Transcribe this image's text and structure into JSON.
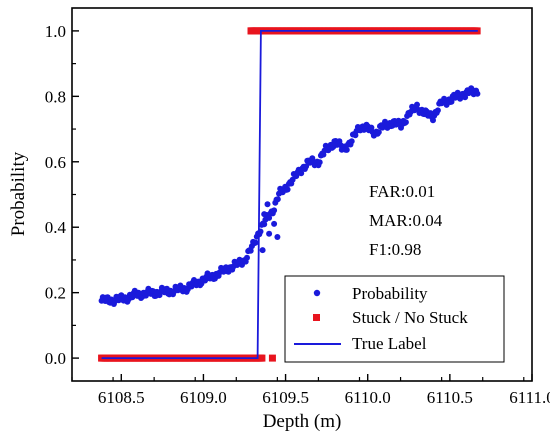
{
  "chart_data": {
    "type": "scatter",
    "xlabel": "Depth (m)",
    "ylabel": "Probability",
    "xlim": [
      6108.2,
      6111.0
    ],
    "ylim": [
      -0.07,
      1.07
    ],
    "x_ticks": [
      6108.5,
      6109.0,
      6109.5,
      6110.0,
      6110.5,
      6111.0
    ],
    "x_tick_labels": [
      "6108.5",
      "6109.0",
      "6109.5",
      "6110.0",
      "6110.5",
      "6111.0"
    ],
    "y_ticks": [
      0.0,
      0.2,
      0.4,
      0.6,
      0.8,
      1.0
    ],
    "y_tick_labels": [
      "0.0",
      "0.2",
      "0.4",
      "0.6",
      "0.8",
      "1.0"
    ],
    "x_minor_step": 0.25,
    "y_minor_step": 0.1,
    "annotations": [
      "FAR:0.01",
      "MAR:0.04",
      "F1:0.98"
    ],
    "legend_position": "bottom-right",
    "grid": false,
    "series": [
      {
        "name": "Probability",
        "style": "dots",
        "color": "#1a1adb",
        "x_start": 6108.38,
        "x_end": 6110.67,
        "curve_points": [
          [
            6108.38,
            0.175
          ],
          [
            6108.5,
            0.18
          ],
          [
            6108.6,
            0.195
          ],
          [
            6108.7,
            0.2
          ],
          [
            6108.8,
            0.205
          ],
          [
            6108.9,
            0.215
          ],
          [
            6109.0,
            0.24
          ],
          [
            6109.1,
            0.26
          ],
          [
            6109.15,
            0.275
          ],
          [
            6109.2,
            0.285
          ],
          [
            6109.25,
            0.3
          ],
          [
            6109.3,
            0.34
          ],
          [
            6109.34,
            0.39
          ],
          [
            6109.38,
            0.42
          ],
          [
            6109.42,
            0.45
          ],
          [
            6109.46,
            0.5
          ],
          [
            6109.5,
            0.52
          ],
          [
            6109.55,
            0.55
          ],
          [
            6109.6,
            0.58
          ],
          [
            6109.65,
            0.6
          ],
          [
            6109.7,
            0.6
          ],
          [
            6109.75,
            0.64
          ],
          [
            6109.8,
            0.66
          ],
          [
            6109.85,
            0.64
          ],
          [
            6109.9,
            0.66
          ],
          [
            6109.95,
            0.71
          ],
          [
            6110.0,
            0.7
          ],
          [
            6110.05,
            0.69
          ],
          [
            6110.1,
            0.71
          ],
          [
            6110.15,
            0.72
          ],
          [
            6110.2,
            0.71
          ],
          [
            6110.25,
            0.745
          ],
          [
            6110.3,
            0.77
          ],
          [
            6110.35,
            0.745
          ],
          [
            6110.4,
            0.74
          ],
          [
            6110.45,
            0.78
          ],
          [
            6110.5,
            0.79
          ],
          [
            6110.55,
            0.8
          ],
          [
            6110.6,
            0.81
          ],
          [
            6110.67,
            0.815
          ]
        ]
      },
      {
        "name": "Stuck / No Stuck",
        "style": "squares",
        "color": "#e8141e",
        "segments": [
          {
            "x_start": 6108.38,
            "x_end": 6109.36,
            "y": 0.0
          },
          {
            "x_start": 6109.29,
            "x_end": 6110.67,
            "y": 1.0
          }
        ],
        "outliers": [
          [
            6109.42,
            0.0
          ],
          [
            6109.29,
            1.0
          ]
        ]
      },
      {
        "name": "True Label",
        "style": "line",
        "color": "#1a1adb",
        "points": [
          [
            6108.38,
            0.0
          ],
          [
            6109.33,
            0.0
          ],
          [
            6109.35,
            1.0
          ],
          [
            6110.67,
            1.0
          ]
        ]
      }
    ]
  }
}
